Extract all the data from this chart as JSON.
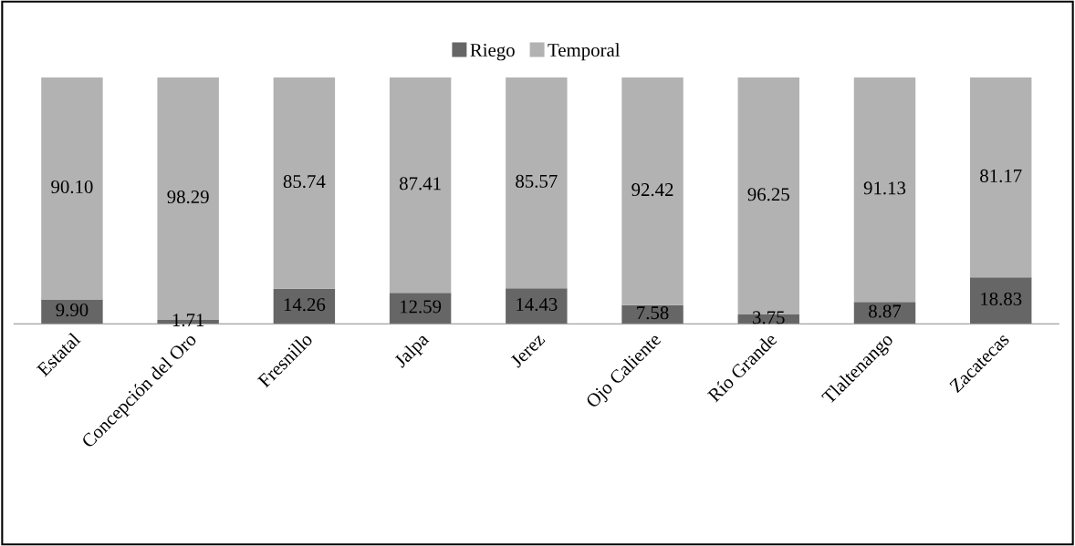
{
  "chart_data": {
    "type": "bar",
    "stacked": true,
    "legend": "top",
    "tick_labels": "x",
    "ylim": [
      0,
      100
    ],
    "categories": [
      "Estatal",
      "Concepción del Oro",
      "Fresnillo",
      "Jalpa",
      "Jerez",
      "Ojo Caliente",
      "Río Grande",
      "Tlaltenango",
      "Zacatecas"
    ],
    "series": [
      {
        "name": "Riego",
        "color": "#666666",
        "values": [
          9.9,
          1.71,
          14.26,
          12.59,
          14.43,
          7.58,
          3.75,
          8.87,
          18.83
        ],
        "value_labels": [
          "9.90",
          "1.71",
          "14.26",
          "12.59",
          "14.43",
          "7.58",
          "3.75",
          "8.87",
          "18.83"
        ]
      },
      {
        "name": "Temporal",
        "color": "#b2b2b2",
        "values": [
          90.1,
          98.29,
          85.74,
          87.41,
          85.57,
          92.42,
          96.25,
          91.13,
          81.17
        ],
        "value_labels": [
          "90.10",
          "98.29",
          "85.74",
          "87.41",
          "85.57",
          "92.42",
          "96.25",
          "91.13",
          "81.17"
        ]
      }
    ]
  }
}
